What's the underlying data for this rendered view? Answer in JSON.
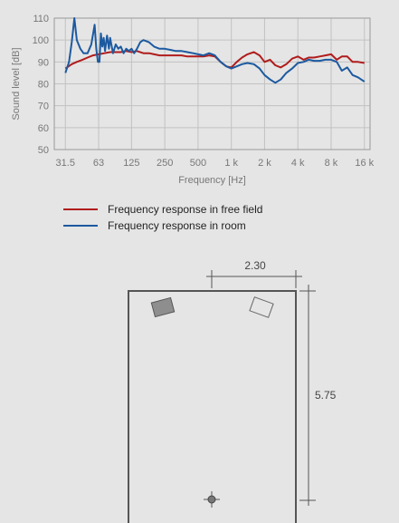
{
  "chart_data": {
    "type": "line",
    "title": "",
    "xlabel": "Frequency [Hz]",
    "ylabel": "Sound level [dB]",
    "xscale": "log",
    "xlim": [
      25,
      18000
    ],
    "ylim": [
      50,
      110
    ],
    "yticks": [
      50,
      60,
      70,
      80,
      90,
      100,
      110
    ],
    "xticks": [
      {
        "value": 31.5,
        "label": "31.5"
      },
      {
        "value": 63,
        "label": "63"
      },
      {
        "value": 125,
        "label": "125"
      },
      {
        "value": 250,
        "label": "250"
      },
      {
        "value": 500,
        "label": "500"
      },
      {
        "value": 1000,
        "label": "1 k"
      },
      {
        "value": 2000,
        "label": "2 k"
      },
      {
        "value": 4000,
        "label": "4 k"
      },
      {
        "value": 8000,
        "label": "8 k"
      },
      {
        "value": 16000,
        "label": "16 k"
      }
    ],
    "grid": true,
    "legend_position": "below",
    "series": [
      {
        "name": "Frequency response in free field",
        "color": "#b01c1c",
        "points": [
          [
            31.5,
            87
          ],
          [
            36,
            89
          ],
          [
            40,
            90
          ],
          [
            45,
            91
          ],
          [
            50,
            92
          ],
          [
            56,
            93
          ],
          [
            63,
            93.5
          ],
          [
            71,
            94
          ],
          [
            80,
            94.5
          ],
          [
            90,
            94.5
          ],
          [
            100,
            94.5
          ],
          [
            112,
            95
          ],
          [
            125,
            94.5
          ],
          [
            140,
            95
          ],
          [
            160,
            94
          ],
          [
            180,
            94
          ],
          [
            200,
            93.5
          ],
          [
            224,
            93
          ],
          [
            250,
            93
          ],
          [
            280,
            93
          ],
          [
            315,
            93
          ],
          [
            355,
            93
          ],
          [
            400,
            92.5
          ],
          [
            450,
            92.5
          ],
          [
            500,
            92.5
          ],
          [
            560,
            92.5
          ],
          [
            630,
            93
          ],
          [
            710,
            92.5
          ],
          [
            800,
            90
          ],
          [
            900,
            88
          ],
          [
            1000,
            87.5
          ],
          [
            1120,
            90
          ],
          [
            1250,
            92
          ],
          [
            1400,
            93.5
          ],
          [
            1600,
            94.5
          ],
          [
            1800,
            93
          ],
          [
            2000,
            90
          ],
          [
            2240,
            91
          ],
          [
            2500,
            88.5
          ],
          [
            2800,
            87.5
          ],
          [
            3150,
            89
          ],
          [
            3550,
            91.5
          ],
          [
            4000,
            92.5
          ],
          [
            4500,
            91
          ],
          [
            5000,
            92
          ],
          [
            5600,
            92
          ],
          [
            6300,
            92.5
          ],
          [
            7100,
            93
          ],
          [
            8000,
            93.5
          ],
          [
            9000,
            91
          ],
          [
            10000,
            92.5
          ],
          [
            11200,
            92.5
          ],
          [
            12500,
            90
          ],
          [
            14000,
            90
          ],
          [
            16000,
            89.5
          ]
        ]
      },
      {
        "name": "Frequency response in room",
        "color": "#1c5aa0",
        "points": [
          [
            31.5,
            85
          ],
          [
            34,
            90
          ],
          [
            36,
            99
          ],
          [
            38,
            110
          ],
          [
            40,
            100
          ],
          [
            43,
            96
          ],
          [
            46,
            94
          ],
          [
            50,
            94
          ],
          [
            54,
            98
          ],
          [
            58,
            107
          ],
          [
            60,
            96
          ],
          [
            62,
            90
          ],
          [
            64,
            90
          ],
          [
            66,
            103
          ],
          [
            68,
            97
          ],
          [
            70,
            101
          ],
          [
            72,
            95
          ],
          [
            75,
            102
          ],
          [
            78,
            96
          ],
          [
            80,
            101
          ],
          [
            85,
            94
          ],
          [
            90,
            98
          ],
          [
            95,
            96
          ],
          [
            100,
            97
          ],
          [
            106,
            94
          ],
          [
            112,
            96
          ],
          [
            118,
            95
          ],
          [
            125,
            96
          ],
          [
            132,
            94
          ],
          [
            140,
            96
          ],
          [
            150,
            99
          ],
          [
            160,
            100
          ],
          [
            180,
            99
          ],
          [
            200,
            97
          ],
          [
            224,
            96
          ],
          [
            250,
            96
          ],
          [
            280,
            95.5
          ],
          [
            315,
            95
          ],
          [
            355,
            95
          ],
          [
            400,
            94.5
          ],
          [
            450,
            94
          ],
          [
            500,
            93.5
          ],
          [
            560,
            93
          ],
          [
            630,
            94
          ],
          [
            710,
            93
          ],
          [
            800,
            90
          ],
          [
            900,
            88
          ],
          [
            1000,
            87
          ],
          [
            1120,
            88
          ],
          [
            1250,
            89
          ],
          [
            1400,
            89.5
          ],
          [
            1600,
            89
          ],
          [
            1800,
            87
          ],
          [
            2000,
            84
          ],
          [
            2240,
            82
          ],
          [
            2500,
            80.5
          ],
          [
            2800,
            82
          ],
          [
            3150,
            85
          ],
          [
            3550,
            87
          ],
          [
            4000,
            89.5
          ],
          [
            4500,
            90
          ],
          [
            5000,
            91
          ],
          [
            5600,
            90.5
          ],
          [
            6300,
            90.5
          ],
          [
            7100,
            91
          ],
          [
            8000,
            91
          ],
          [
            9000,
            90
          ],
          [
            10000,
            86
          ],
          [
            11200,
            87.5
          ],
          [
            12500,
            84
          ],
          [
            14000,
            83
          ],
          [
            16000,
            81
          ]
        ]
      }
    ]
  },
  "room": {
    "width_label": "2.30",
    "length_label": "5.75",
    "shape_color": "#555555"
  }
}
